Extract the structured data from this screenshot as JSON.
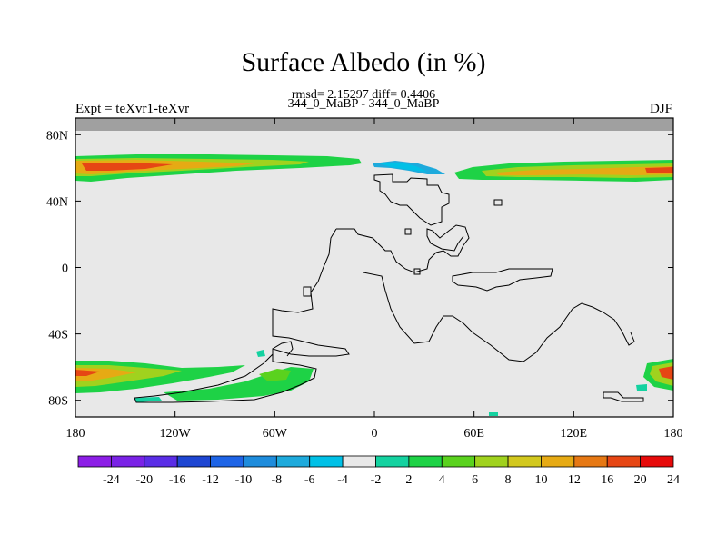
{
  "header": {
    "title": "Surface Albedo (in %)",
    "stats_line": "rmsd= 2.15297 diff= 0.4406",
    "comparison_line": "344_0_MaBP - 344_0_MaBP",
    "left_label": "Expt = teXvr1-teXvr",
    "right_label": "DJF"
  },
  "colors": {
    "background_field": "#e8e8e8",
    "missing_band": "#a0a0a0",
    "coastline": "#000000"
  },
  "chart_data": {
    "type": "heatmap",
    "title": "Surface Albedo (in %)",
    "projection": "cylindrical-equidistant",
    "xlim": [
      -180,
      180
    ],
    "ylim": [
      -90,
      90
    ],
    "x_ticks": [
      {
        "value": -180,
        "label": "180"
      },
      {
        "value": -120,
        "label": "120W"
      },
      {
        "value": -60,
        "label": "60W"
      },
      {
        "value": 0,
        "label": "0"
      },
      {
        "value": 60,
        "label": "60E"
      },
      {
        "value": 120,
        "label": "120E"
      },
      {
        "value": 180,
        "label": "180"
      }
    ],
    "y_ticks": [
      {
        "value": 80,
        "label": "80N"
      },
      {
        "value": 40,
        "label": "40N"
      },
      {
        "value": 0,
        "label": "0"
      },
      {
        "value": -40,
        "label": "40S"
      },
      {
        "value": -80,
        "label": "80S"
      }
    ],
    "colorbar": {
      "levels": [
        "-24",
        "-20",
        "-16",
        "-12",
        "-10",
        "-8",
        "-6",
        "-4",
        "-2",
        "2",
        "4",
        "6",
        "8",
        "10",
        "12",
        "16",
        "20",
        "24"
      ],
      "colors": [
        "#8c1ee6",
        "#7a22e6",
        "#5a2de6",
        "#1e46d2",
        "#1e64e6",
        "#1e8cdc",
        "#1eaadc",
        "#00c0e6",
        "#e8e8e8",
        "#14d2a0",
        "#1ed246",
        "#5ad21e",
        "#a0d21e",
        "#d2c81e",
        "#e6aa14",
        "#e67814",
        "#e64614",
        "#e60a0a"
      ]
    },
    "regions": [
      {
        "name": "northern-band-west",
        "lon": [
          -180,
          -7
        ],
        "lat": [
          56,
          68
        ],
        "peak": 20
      },
      {
        "name": "northern-band-east",
        "lon": [
          50,
          180
        ],
        "lat": [
          53,
          65
        ],
        "peak": 16
      },
      {
        "name": "arctic-negative-patch",
        "lon": [
          0,
          45
        ],
        "lat": [
          58,
          64
        ],
        "peak": -4
      },
      {
        "name": "southern-band-west",
        "lon": [
          -180,
          -100
        ],
        "lat": [
          -78,
          -60
        ],
        "peak": 24
      },
      {
        "name": "southern-south-america",
        "lon": [
          -100,
          -30
        ],
        "lat": [
          -80,
          -60
        ],
        "peak": 8
      },
      {
        "name": "southern-band-east",
        "lon": [
          165,
          180
        ],
        "lat": [
          -78,
          -60
        ],
        "peak": 20
      }
    ]
  }
}
